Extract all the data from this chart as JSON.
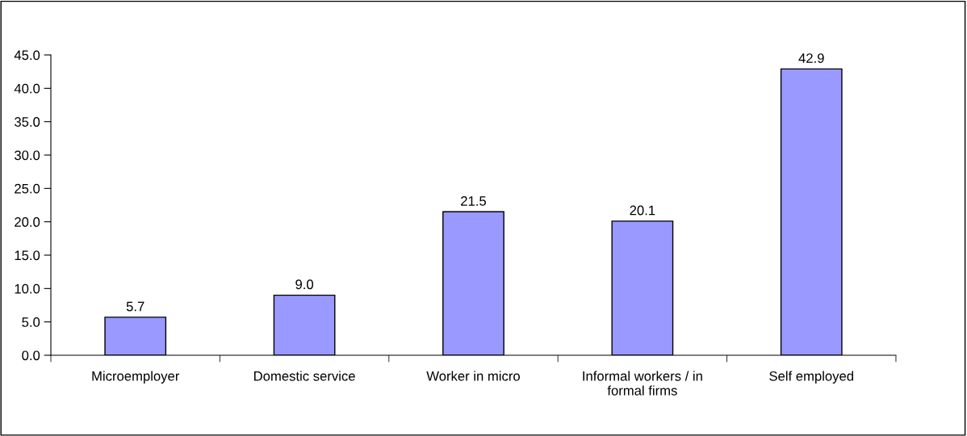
{
  "chart_data": {
    "type": "bar",
    "categories": [
      "Microemployer",
      "Domestic service",
      "Worker in micro",
      "Informal workers / in\nformal firms",
      "Self employed"
    ],
    "values": [
      5.7,
      9.0,
      21.5,
      20.1,
      42.9
    ],
    "value_labels": [
      "5.7",
      "9.0",
      "21.5",
      "20.1",
      "42.9"
    ],
    "color": "#9999ff",
    "ylim": [
      0,
      45
    ],
    "yticks": [
      {
        "value": 0,
        "label": "0.0"
      },
      {
        "value": 5,
        "label": "5.0"
      },
      {
        "value": 10,
        "label": "10.0"
      },
      {
        "value": 15,
        "label": "15.0"
      },
      {
        "value": 20,
        "label": "20.0"
      },
      {
        "value": 25,
        "label": "25.0"
      },
      {
        "value": 30,
        "label": "30.0"
      },
      {
        "value": 35,
        "label": "35.0"
      },
      {
        "value": 40,
        "label": "40.0"
      },
      {
        "value": 45,
        "label": "45.0"
      }
    ],
    "grid": false,
    "legend": false
  }
}
